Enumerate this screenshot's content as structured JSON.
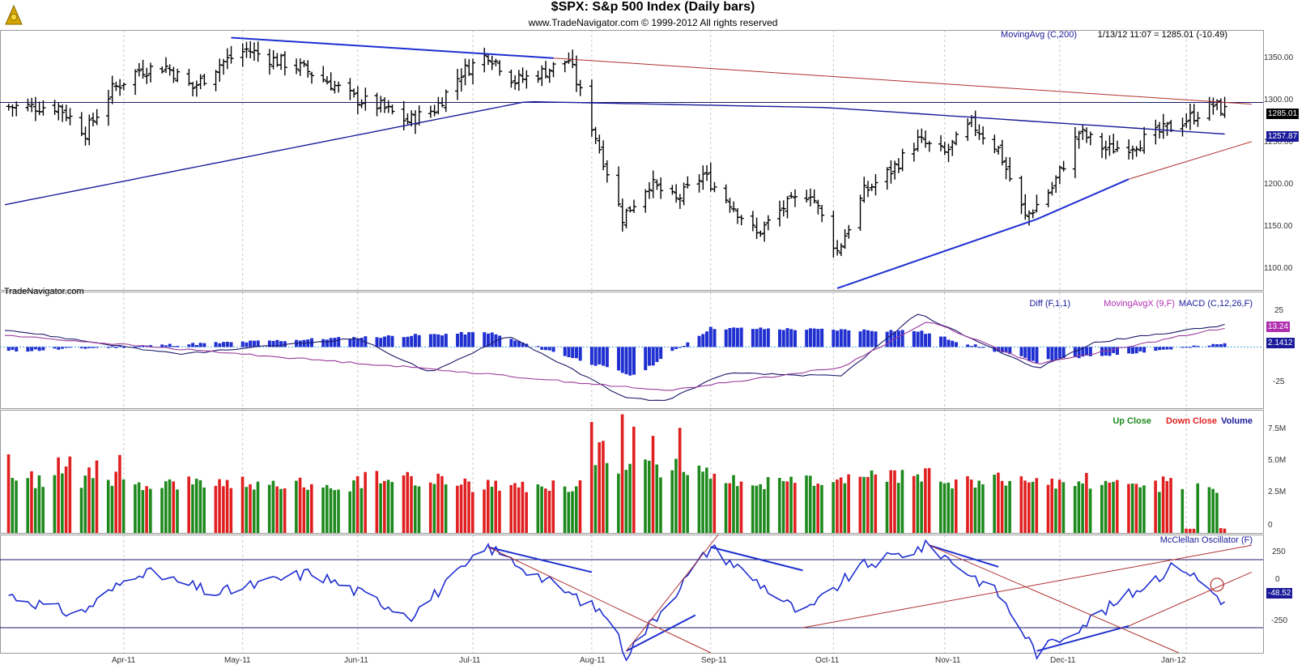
{
  "header": {
    "title": "$SPX:  S&p 500 Index  (Daily bars)",
    "subtitle": "www.TradeNavigator.com © 1999-2012 All rights reserved",
    "logo_icon": "tradenavigator-logo-icon"
  },
  "price_panel": {
    "indicator_label": "MovingAvg (C,200)",
    "quote": "1/13/12 11:07 = 1285.01 (-10.49)",
    "watermark": "TradeNavigator.com",
    "last_price_flag": "1285.01",
    "ma_flag": "1257.87",
    "yticks": [
      "1350.00",
      "1300.00",
      "1250.00",
      "1200.00",
      "1150.00",
      "1100.00"
    ]
  },
  "macd_panel": {
    "label_diff": "Diff (F,1,1)",
    "label_signal": "MovingAvgX (9,F)",
    "label_macd": "MACD (C,12,26,F)",
    "yticks": [
      "25",
      "-25"
    ],
    "flag_signal": "13.24",
    "flag_diff": "2.1412"
  },
  "volume_panel": {
    "label_up": "Up Close",
    "label_down": "Down Close",
    "label_volume": "Volume",
    "yticks": [
      "7.5M",
      "5.0M",
      "2.5M",
      "0"
    ]
  },
  "osc_panel": {
    "label": "McClellan Oscillator (F)",
    "yticks": [
      "250",
      "0",
      "-250"
    ],
    "flag": "-48.52"
  },
  "x_axis": {
    "labels": [
      "Apr-11",
      "May-11",
      "Jun-11",
      "Jul-11",
      "Aug-11",
      "Sep-11",
      "Oct-11",
      "Nov-11",
      "Dec-11",
      "Jan-12"
    ]
  },
  "colors": {
    "price_bar": "#000000",
    "moving_average": "#1a1a9a",
    "trendline_blue": "#1f2fd0",
    "trendline_red": "#b03030",
    "up_volume": "#1e8a1e",
    "down_volume": "#e02020",
    "macd_hist": "#1f2fd0",
    "signal_line": "#9a3a9a",
    "oscillator": "#1f2fd0",
    "label_blue": "#1a1a9a",
    "label_magenta": "#b030b0"
  },
  "chart_data": [
    {
      "type": "candlestick",
      "title": "$SPX:  S&p 500 Index  (Daily bars)",
      "ylim": [
        1075,
        1380
      ],
      "x_range": [
        "Mar-11",
        "Jan-12"
      ],
      "series": [
        {
          "name": "Close",
          "x": [
            "2011-03-15",
            "2011-03-22",
            "2011-03-29",
            "2011-04-05",
            "2011-04-12",
            "2011-04-19",
            "2011-04-26",
            "2011-05-03",
            "2011-05-10",
            "2011-05-17",
            "2011-05-24",
            "2011-05-31",
            "2011-06-07",
            "2011-06-14",
            "2011-06-21",
            "2011-06-28",
            "2011-07-05",
            "2011-07-12",
            "2011-07-19",
            "2011-07-26",
            "2011-08-02",
            "2011-08-09",
            "2011-08-16",
            "2011-08-23",
            "2011-08-30",
            "2011-09-06",
            "2011-09-13",
            "2011-09-20",
            "2011-09-27",
            "2011-10-04",
            "2011-10-11",
            "2011-10-18",
            "2011-10-25",
            "2011-11-01",
            "2011-11-08",
            "2011-11-15",
            "2011-11-22",
            "2011-11-29",
            "2011-12-06",
            "2011-12-13",
            "2011-12-20",
            "2011-12-27",
            "2012-01-03",
            "2012-01-10",
            "2012-01-13"
          ],
          "values": [
            1290,
            1260,
            1310,
            1333,
            1337,
            1312,
            1340,
            1357,
            1345,
            1336,
            1320,
            1300,
            1290,
            1273,
            1287,
            1330,
            1352,
            1320,
            1330,
            1345,
            1255,
            1160,
            1200,
            1180,
            1210,
            1178,
            1140,
            1172,
            1190,
            1120,
            1190,
            1215,
            1250,
            1235,
            1270,
            1240,
            1160,
            1195,
            1260,
            1240,
            1245,
            1260,
            1275,
            1292,
            1285
          ]
        },
        {
          "name": "MovingAvg (C,200)",
          "x": [
            "2011-03-01",
            "2011-07-15",
            "2011-10-01",
            "2012-01-13"
          ],
          "values": [
            1175,
            1296,
            1289,
            1257.87
          ]
        }
      ]
    },
    {
      "type": "line",
      "title": "MACD (C,12,26,F)",
      "ylim": [
        -42,
        38
      ],
      "series": [
        {
          "name": "MACD (C,12,26,F)",
          "x": [
            "2011-03-01",
            "2011-04-15",
            "2011-06-01",
            "2011-06-20",
            "2011-07-10",
            "2011-08-10",
            "2011-08-20",
            "2011-09-05",
            "2011-10-05",
            "2011-10-25",
            "2011-11-25",
            "2011-12-10",
            "2012-01-13"
          ],
          "values": [
            12,
            -5,
            6,
            -18,
            8,
            -35,
            -37,
            -18,
            -20,
            23,
            -15,
            3,
            15
          ]
        },
        {
          "name": "MovingAvgX (9,F)",
          "x": [
            "2011-03-01",
            "2011-06-20",
            "2011-08-20",
            "2011-10-05",
            "2011-10-28",
            "2011-11-25",
            "2012-01-13"
          ],
          "values": [
            8,
            -15,
            -30,
            -14,
            18,
            -12,
            13.24
          ]
        },
        {
          "name": "Diff (F,1,1)",
          "x": [
            "2011-03-01",
            "2011-07-05",
            "2011-08-12",
            "2011-09-01",
            "2011-10-25",
            "2011-11-25",
            "2012-01-13"
          ],
          "values": [
            -3,
            10,
            -20,
            13,
            11,
            -10,
            2.1412
          ]
        }
      ]
    },
    {
      "type": "bar",
      "title": "Volume",
      "ylim": [
        0,
        8.5
      ],
      "series": [
        {
          "name": "Up Close",
          "x": [
            "Mar-11",
            "Apr-11",
            "May-11",
            "Jun-11",
            "Jul-11",
            "Aug-11",
            "Sep-11",
            "Oct-11",
            "Nov-11",
            "Dec-11",
            "Jan-12"
          ],
          "values": [
            3.6,
            3.3,
            3.2,
            3.6,
            3.0,
            4.5,
            3.5,
            4.0,
            3.5,
            3.3,
            3.0
          ]
        },
        {
          "name": "Down Close",
          "x": [
            "Mar-11",
            "Apr-11",
            "May-11",
            "Jun-11",
            "Jul-11",
            "Aug-11",
            "Sep-11",
            "Oct-11",
            "Nov-11",
            "Dec-11",
            "Jan-12"
          ],
          "values": [
            4.8,
            3.4,
            3.5,
            3.8,
            3.3,
            7.3,
            3.8,
            4.0,
            3.8,
            3.7,
            0.3
          ]
        }
      ]
    },
    {
      "type": "line",
      "title": "McClellan Oscillator (F)",
      "ylim": [
        -330,
        330
      ],
      "series": [
        {
          "name": "McClellan Oscillator (F)",
          "x": [
            "2011-03-01",
            "2011-03-20",
            "2011-04-05",
            "2011-04-25",
            "2011-05-20",
            "2011-06-15",
            "2011-07-05",
            "2011-08-05",
            "2011-08-10",
            "2011-09-01",
            "2011-09-25",
            "2011-10-10",
            "2011-10-28",
            "2011-11-15",
            "2011-11-25",
            "2011-12-10",
            "2012-01-01",
            "2012-01-13"
          ],
          "values": [
            0,
            -120,
            130,
            0,
            120,
            -120,
            260,
            -120,
            -340,
            260,
            -120,
            150,
            270,
            0,
            -330,
            -130,
            170,
            -48.52
          ]
        }
      ]
    }
  ]
}
